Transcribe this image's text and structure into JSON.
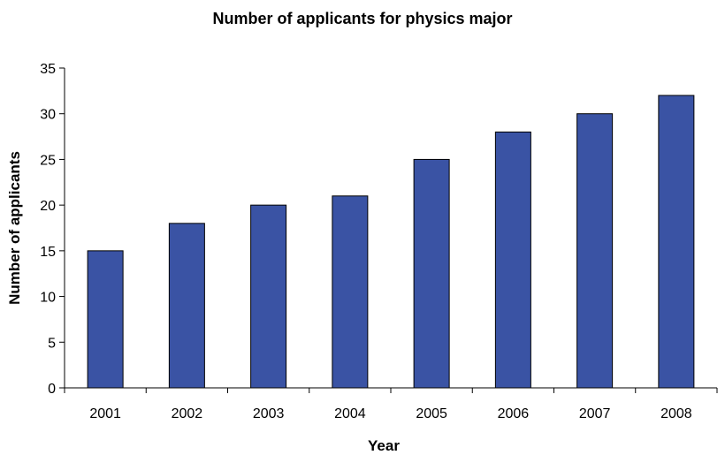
{
  "chart_data": {
    "type": "bar",
    "title": "Number of applicants for physics major",
    "xlabel": "Year",
    "ylabel": "Number of applicants",
    "categories": [
      "2001",
      "2002",
      "2003",
      "2004",
      "2005",
      "2006",
      "2007",
      "2008"
    ],
    "values": [
      15,
      18,
      20,
      21,
      25,
      28,
      30,
      32
    ],
    "ylim": [
      0,
      35
    ],
    "yticks": [
      0,
      5,
      10,
      15,
      20,
      25,
      30,
      35
    ],
    "grid": false,
    "legend": "none",
    "bar_color": "#3a53a4"
  }
}
